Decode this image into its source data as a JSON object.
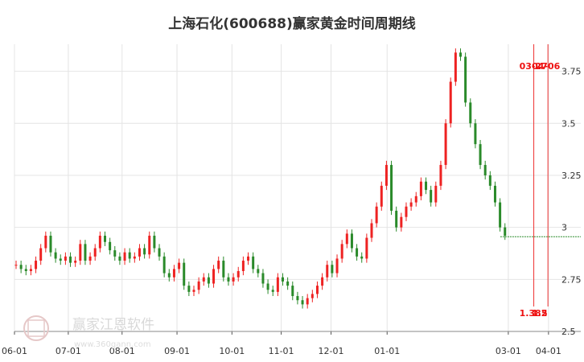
{
  "chart_data": {
    "type": "candlestick",
    "title": "上海石化(600688)赢家黄金时间周期线",
    "x_tick_labels": [
      "06-01",
      "07-01",
      "08-01",
      "09-01",
      "10-01",
      "11-01",
      "12-01",
      "01-01",
      "03-01",
      "04-01"
    ],
    "y_tick_labels": [
      "2.5",
      "2.75",
      "3",
      "3.25",
      "3.5",
      "3.75"
    ],
    "ylim": [
      2.5,
      3.88
    ],
    "grid": true,
    "up_color": "#ee2222",
    "down_color": "#2a8a2a",
    "close_series": [
      2.82,
      2.8,
      2.79,
      2.8,
      2.84,
      2.9,
      2.96,
      2.88,
      2.85,
      2.84,
      2.86,
      2.83,
      2.84,
      2.92,
      2.84,
      2.86,
      2.9,
      2.96,
      2.93,
      2.89,
      2.86,
      2.84,
      2.88,
      2.85,
      2.86,
      2.9,
      2.87,
      2.96,
      2.9,
      2.86,
      2.78,
      2.76,
      2.8,
      2.83,
      2.72,
      2.69,
      2.7,
      2.74,
      2.76,
      2.73,
      2.8,
      2.84,
      2.76,
      2.74,
      2.76,
      2.79,
      2.84,
      2.86,
      2.8,
      2.78,
      2.73,
      2.7,
      2.69,
      2.76,
      2.74,
      2.72,
      2.67,
      2.65,
      2.63,
      2.66,
      2.68,
      2.72,
      2.76,
      2.82,
      2.78,
      2.85,
      2.92,
      2.97,
      2.9,
      2.86,
      2.85,
      2.95,
      3.02,
      3.1,
      3.2,
      3.3,
      3.08,
      3.0,
      3.05,
      3.1,
      3.12,
      3.15,
      3.22,
      3.18,
      3.12,
      3.2,
      3.3,
      3.5,
      3.7,
      3.84,
      3.82,
      3.6,
      3.5,
      3.4,
      3.3,
      3.25,
      3.2,
      3.12,
      3.0,
      2.96,
      2.955,
      2.955,
      2.955,
      2.955,
      2.955,
      2.955,
      2.955,
      2.955,
      2.955
    ],
    "vertical_lines": [
      {
        "label": "03-27",
        "low_label": "1.382",
        "x_fraction": 0.917,
        "top": 3.88,
        "bottom": 2.62
      },
      {
        "label": "04-06",
        "low_label": "1.5",
        "x_fraction": 0.942,
        "top": 3.88,
        "bottom": 2.62
      }
    ],
    "price_line_start_fraction": 0.872,
    "watermark": {
      "text": "赢家江恩软件",
      "url": "www.360gann.com"
    }
  }
}
